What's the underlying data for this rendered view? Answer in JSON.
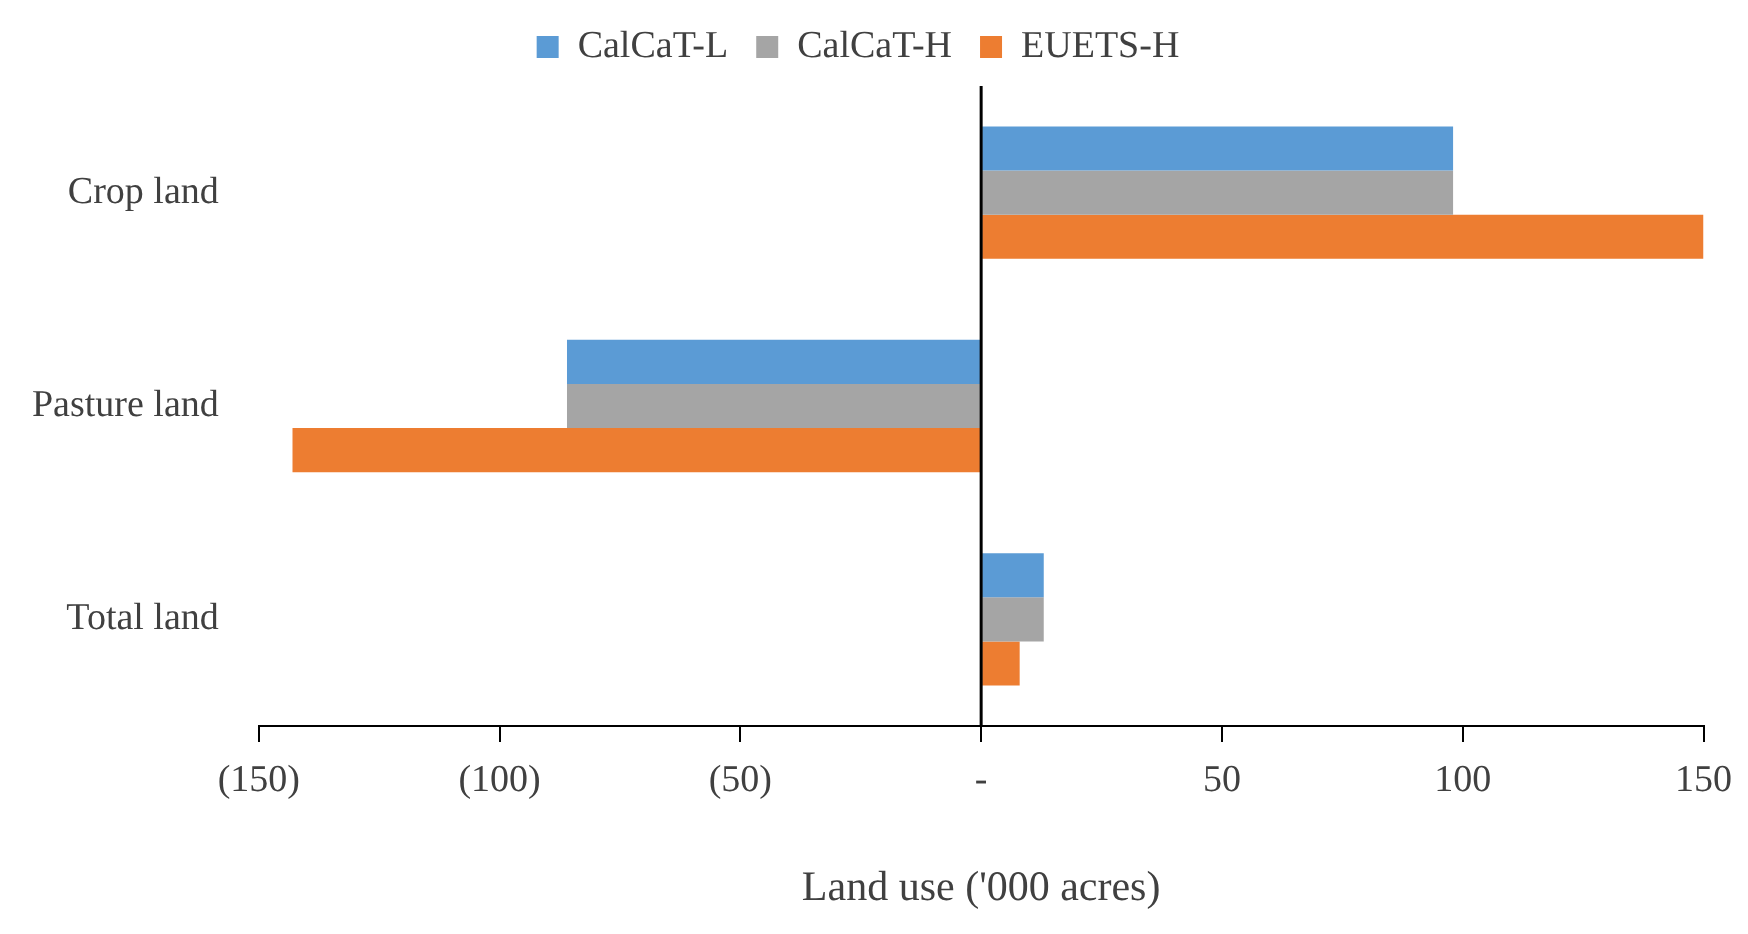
{
  "chart_data": {
    "type": "bar",
    "orientation": "horizontal",
    "xlabel": "Land use ('000 acres)",
    "categories": [
      "Crop land",
      "Pasture land",
      "Total land"
    ],
    "series": [
      {
        "name": "CalCaT-L",
        "color": "#5b9bd5",
        "values": [
          98,
          -86,
          13
        ]
      },
      {
        "name": "CalCaT-H",
        "color": "#a5a5a5",
        "values": [
          98,
          -86,
          13
        ]
      },
      {
        "name": "EUETS-H",
        "color": "#ed7d31",
        "values": [
          150,
          -143,
          8
        ]
      }
    ],
    "xlim": [
      -150,
      150
    ],
    "xticks": [
      {
        "value": -150,
        "label": "(150)"
      },
      {
        "value": -100,
        "label": "(100)"
      },
      {
        "value": -50,
        "label": "(50)"
      },
      {
        "value": 0,
        "label": "-"
      },
      50,
      100,
      150
    ],
    "ref_lines": [
      {
        "axis": "x",
        "value": 0,
        "color": "#000000"
      }
    ],
    "grid": false,
    "legend": "top"
  }
}
